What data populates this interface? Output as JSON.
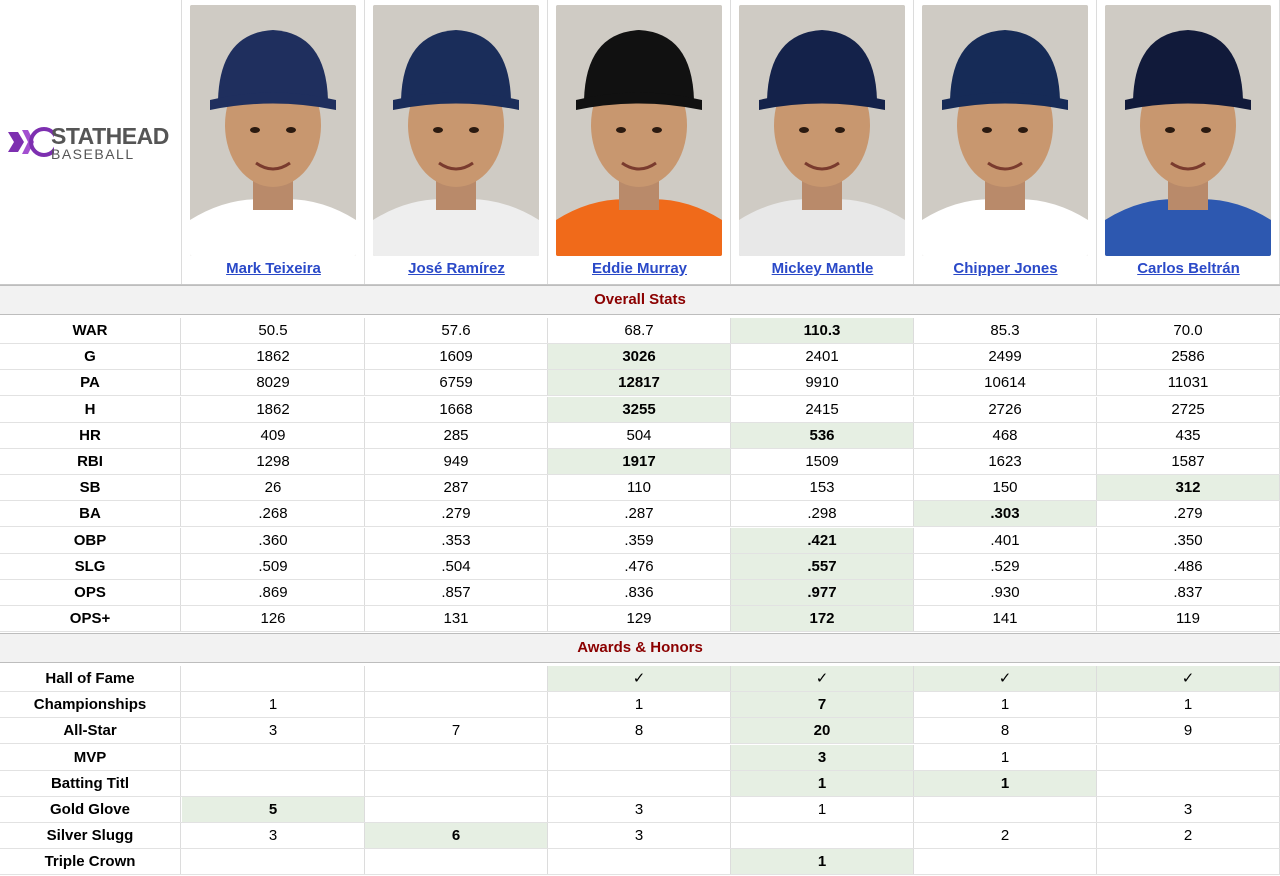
{
  "logo": {
    "line1": "STATHEAD",
    "line2": "BASEBALL"
  },
  "colors": {
    "section_title": "#8b0000",
    "link": "#2a49c8",
    "highlight": "#e6efe3",
    "logo_purple": "#7d2fb0"
  },
  "players": [
    {
      "name": "Mark Teixeira",
      "cap": "#1f2f5e",
      "logo": "T",
      "jersey": "#ffffff"
    },
    {
      "name": "José Ramírez",
      "cap": "#1a2d5a",
      "logo": "C",
      "jersey": "#eeeeee"
    },
    {
      "name": "Eddie Murray",
      "cap": "#111111",
      "logo": "bird",
      "jersey": "#f06a1a"
    },
    {
      "name": "Mickey Mantle",
      "cap": "#14224a",
      "logo": "NY",
      "jersey": "#e8e8e8"
    },
    {
      "name": "Chipper Jones",
      "cap": "#162b57",
      "logo": "A",
      "jersey": "#ffffff"
    },
    {
      "name": "Carlos Beltrán",
      "cap": "#111a3a",
      "logo": "NY",
      "jersey": "#2d58b0"
    }
  ],
  "sections": {
    "overall": "Overall Stats",
    "awards": "Awards & Honors"
  },
  "overall_stats": [
    {
      "label": "WAR",
      "values": [
        "50.5",
        "57.6",
        "68.7",
        "110.3",
        "85.3",
        "70.0"
      ],
      "best": 3
    },
    {
      "label": "G",
      "values": [
        "1862",
        "1609",
        "3026",
        "2401",
        "2499",
        "2586"
      ],
      "best": 2
    },
    {
      "label": "PA",
      "values": [
        "8029",
        "6759",
        "12817",
        "9910",
        "10614",
        "11031"
      ],
      "best": 2
    },
    {
      "label": "H",
      "values": [
        "1862",
        "1668",
        "3255",
        "2415",
        "2726",
        "2725"
      ],
      "best": 2
    },
    {
      "label": "HR",
      "values": [
        "409",
        "285",
        "504",
        "536",
        "468",
        "435"
      ],
      "best": 3
    },
    {
      "label": "RBI",
      "values": [
        "1298",
        "949",
        "1917",
        "1509",
        "1623",
        "1587"
      ],
      "best": 2
    },
    {
      "label": "SB",
      "values": [
        "26",
        "287",
        "110",
        "153",
        "150",
        "312"
      ],
      "best": 5
    },
    {
      "label": "BA",
      "values": [
        ".268",
        ".279",
        ".287",
        ".298",
        ".303",
        ".279"
      ],
      "best": 4
    },
    {
      "label": "OBP",
      "values": [
        ".360",
        ".353",
        ".359",
        ".421",
        ".401",
        ".350"
      ],
      "best": 3
    },
    {
      "label": "SLG",
      "values": [
        ".509",
        ".504",
        ".476",
        ".557",
        ".529",
        ".486"
      ],
      "best": 3
    },
    {
      "label": "OPS",
      "values": [
        ".869",
        ".857",
        ".836",
        ".977",
        ".930",
        ".837"
      ],
      "best": 3
    },
    {
      "label": "OPS+",
      "values": [
        "126",
        "131",
        "129",
        "172",
        "141",
        "119"
      ],
      "best": 3
    }
  ],
  "awards": [
    {
      "label": "Hall of Fame",
      "values": [
        "",
        "",
        "✓",
        "✓",
        "✓",
        "✓"
      ],
      "hl": [
        2,
        3,
        4,
        5
      ],
      "bold": false
    },
    {
      "label": "Championships",
      "values": [
        "1",
        "",
        "1",
        "7",
        "1",
        "1"
      ],
      "hl": [
        3
      ],
      "bold": true
    },
    {
      "label": "All-Star",
      "values": [
        "3",
        "7",
        "8",
        "20",
        "8",
        "9"
      ],
      "hl": [
        3
      ],
      "bold": true
    },
    {
      "label": "MVP",
      "values": [
        "",
        "",
        "",
        "3",
        "1",
        ""
      ],
      "hl": [
        3
      ],
      "bold": true
    },
    {
      "label": "Batting Titl",
      "values": [
        "",
        "",
        "",
        "1",
        "1",
        ""
      ],
      "hl": [
        3,
        4
      ],
      "bold": true
    },
    {
      "label": "Gold Glove",
      "values": [
        "5",
        "",
        "3",
        "1",
        "",
        "3"
      ],
      "hl": [
        0
      ],
      "bold": true
    },
    {
      "label": "Silver Slugg",
      "values": [
        "3",
        "6",
        "3",
        "",
        "2",
        "2"
      ],
      "hl": [
        1
      ],
      "bold": true
    },
    {
      "label": "Triple Crown",
      "values": [
        "",
        "",
        "",
        "1",
        "",
        ""
      ],
      "hl": [
        3
      ],
      "bold": true
    }
  ]
}
